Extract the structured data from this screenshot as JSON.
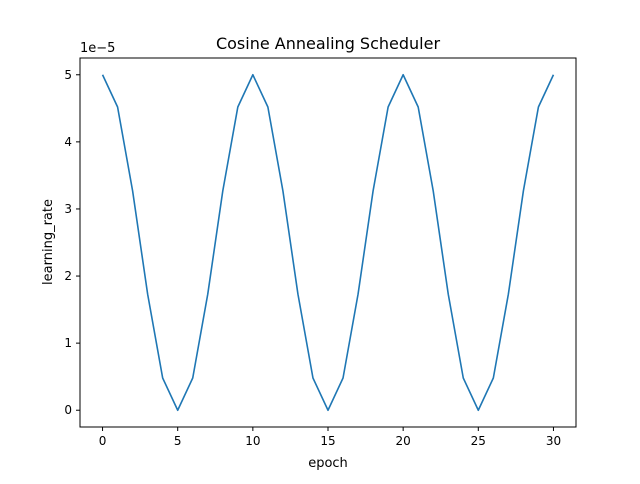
{
  "chart_data": {
    "type": "line",
    "title": "Cosine Annealing Scheduler",
    "xlabel": "epoch",
    "ylabel": "learning_rate",
    "y_offset_label": "1e−5",
    "x": [
      0,
      1,
      2,
      3,
      4,
      5,
      6,
      7,
      8,
      9,
      10,
      11,
      12,
      13,
      14,
      15,
      16,
      17,
      18,
      19,
      20,
      21,
      22,
      23,
      24,
      25,
      26,
      27,
      28,
      29,
      30
    ],
    "series": [
      {
        "color": "#1f77b4",
        "values": [
          5.0,
          4.52,
          3.27,
          1.73,
          0.48,
          0.0,
          0.48,
          1.73,
          3.27,
          4.52,
          5.0,
          4.52,
          3.27,
          1.73,
          0.48,
          0.0,
          0.48,
          1.73,
          3.27,
          4.52,
          5.0,
          4.52,
          3.27,
          1.73,
          0.48,
          0.0,
          0.48,
          1.73,
          3.27,
          4.52,
          5.0
        ]
      }
    ],
    "xticks": [
      0,
      5,
      10,
      15,
      20,
      25,
      30
    ],
    "yticks": [
      0,
      1,
      2,
      3,
      4,
      5
    ],
    "xlim": [
      -1.5,
      31.5
    ],
    "ylim": [
      -0.25,
      5.25
    ],
    "grid": false
  }
}
